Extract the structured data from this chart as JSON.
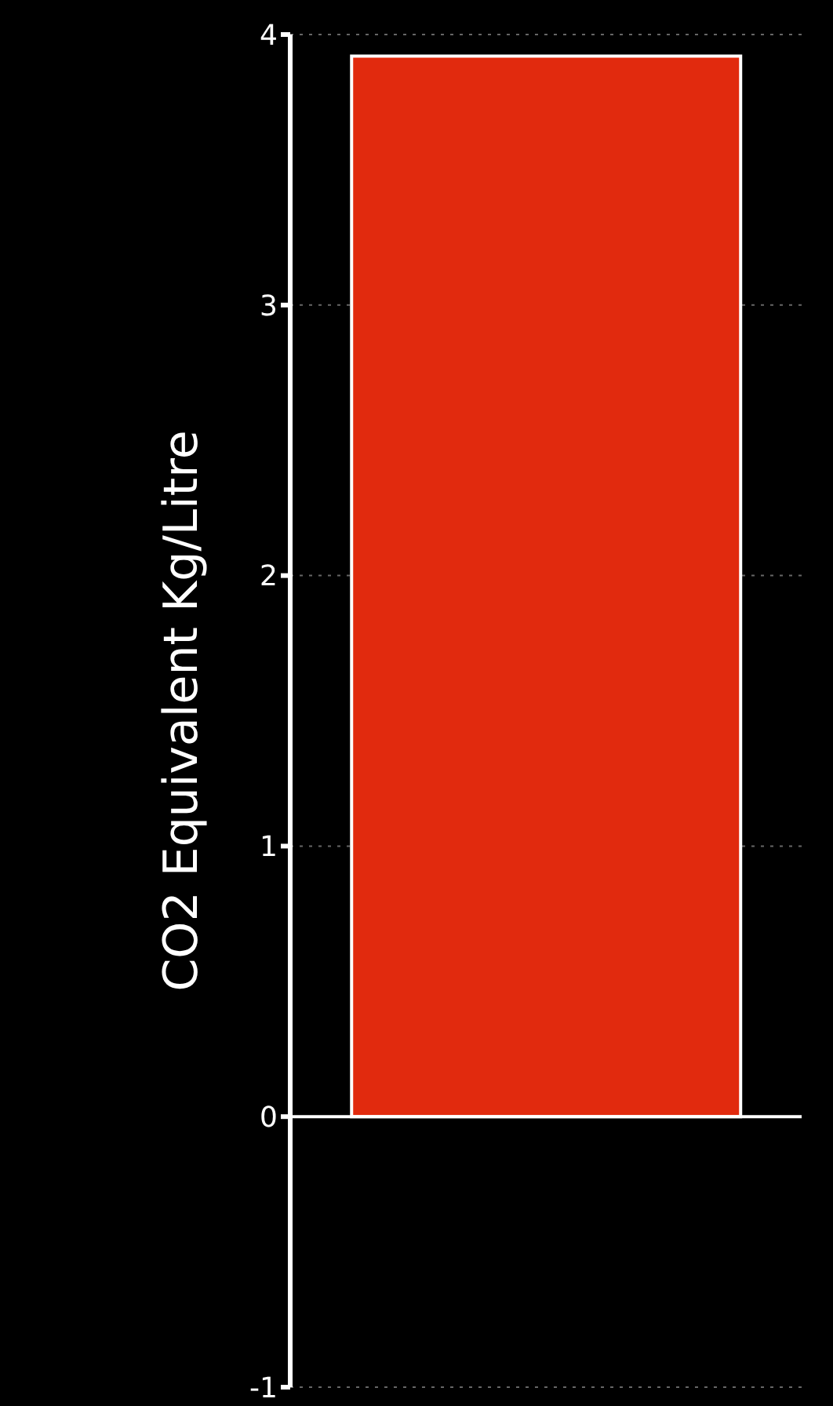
{
  "chart_data": {
    "type": "bar",
    "ylabel": "CO2 Equivalent Kg/Litre",
    "categories": [
      null
    ],
    "values": [
      3.92
    ],
    "color": "#e12a0e",
    "ylim": [
      -1,
      4
    ],
    "yticks": [
      -1,
      0,
      1,
      2,
      3,
      4
    ],
    "grid": "y",
    "ref_lines": [
      {
        "axis": "y",
        "value": 0,
        "color": "#ffffff"
      }
    ]
  }
}
